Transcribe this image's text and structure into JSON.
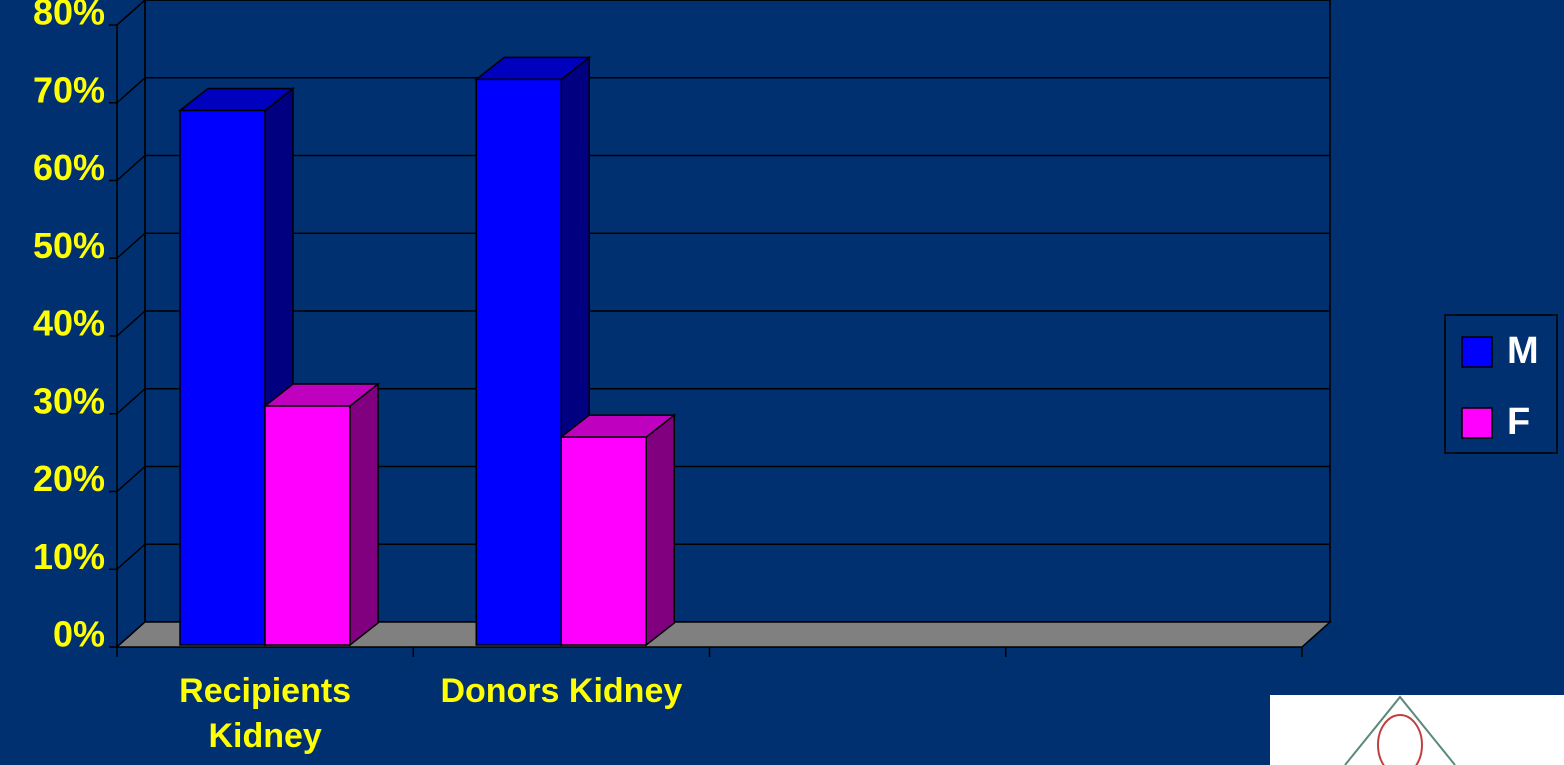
{
  "chart_data": {
    "type": "bar3d",
    "categories": [
      "Recipients Kidney",
      "Donors Kidney",
      null,
      null
    ],
    "series": [
      {
        "name": "M",
        "color": "#0000ff",
        "values": [
          69,
          73,
          null,
          null
        ]
      },
      {
        "name": "F",
        "color": "#ff00ff",
        "values": [
          31,
          27,
          null,
          null
        ]
      }
    ],
    "ylim": [
      0,
      80
    ],
    "yticks": [
      {
        "value": 0,
        "label": "0%"
      },
      {
        "value": 10,
        "label": "10%"
      },
      {
        "value": 20,
        "label": "20%"
      },
      {
        "value": 30,
        "label": "30%"
      },
      {
        "value": 40,
        "label": "40%"
      },
      {
        "value": 50,
        "label": "50%"
      },
      {
        "value": 60,
        "label": "60%"
      },
      {
        "value": 70,
        "label": "70%"
      },
      {
        "value": 80,
        "label": "80%"
      }
    ],
    "grid": true,
    "legend": "right"
  }
}
